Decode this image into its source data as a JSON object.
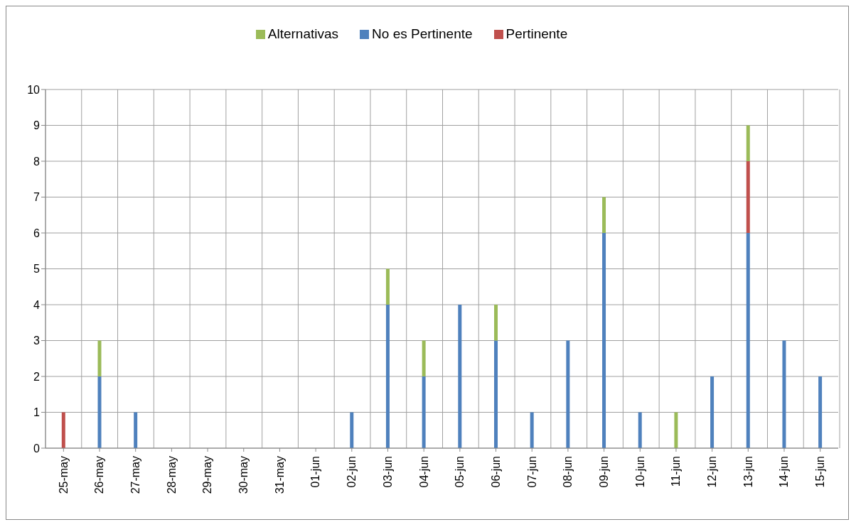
{
  "chart_data": {
    "type": "bar",
    "stacked": true,
    "categories": [
      "25-may",
      "26-may",
      "27-may",
      "28-may",
      "29-may",
      "30-may",
      "31-may",
      "01-jun",
      "02-jun",
      "03-jun",
      "04-jun",
      "05-jun",
      "06-jun",
      "07-jun",
      "08-jun",
      "09-jun",
      "10-jun",
      "11-jun",
      "12-jun",
      "13-jun",
      "14-jun",
      "15-jun"
    ],
    "series": [
      {
        "name": "No es Pertinente",
        "color": "#4f81bd",
        "values": [
          0,
          2,
          1,
          0,
          0,
          0,
          0,
          0,
          1,
          4,
          2,
          4,
          3,
          1,
          3,
          6,
          1,
          0,
          2,
          6,
          3,
          2
        ]
      },
      {
        "name": "Pertinente",
        "color": "#c0504d",
        "values": [
          1,
          0,
          0,
          0,
          0,
          0,
          0,
          0,
          0,
          0,
          0,
          0,
          0,
          0,
          0,
          0,
          0,
          0,
          0,
          2,
          0,
          0
        ]
      },
      {
        "name": "Alternativas",
        "color": "#9bbb59",
        "values": [
          0,
          1,
          0,
          0,
          0,
          0,
          0,
          0,
          0,
          1,
          1,
          0,
          1,
          0,
          0,
          1,
          0,
          1,
          0,
          1,
          0,
          0
        ]
      }
    ],
    "ylim": [
      0,
      10
    ],
    "yticks": [
      0,
      1,
      2,
      3,
      4,
      5,
      6,
      7,
      8,
      9,
      10
    ],
    "grid": true,
    "legend": "top"
  }
}
